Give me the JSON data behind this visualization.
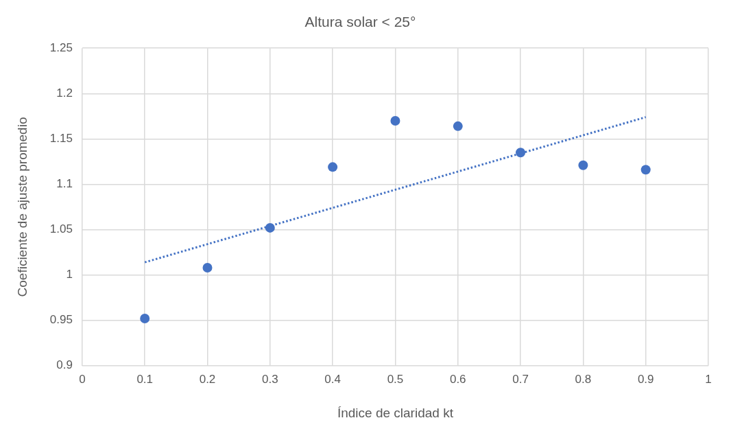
{
  "chart_data": {
    "type": "scatter",
    "title": "Altura solar < 25°",
    "xlabel": "Índice de claridad kt",
    "ylabel": "Coeficiente de ajuste promedio",
    "x": [
      0.1,
      0.2,
      0.3,
      0.4,
      0.5,
      0.6,
      0.7,
      0.8,
      0.9
    ],
    "series": [
      {
        "type": "scatter",
        "color": "#4472c4",
        "marker": "circle",
        "values": [
          0.952,
          1.008,
          1.052,
          1.119,
          1.17,
          1.164,
          1.135,
          1.121,
          1.116
        ]
      },
      {
        "type": "line",
        "color": "#4472c4",
        "marker": "none",
        "line_style": "dotted",
        "x": [
          0.1,
          0.9
        ],
        "values": [
          1.014,
          1.174
        ]
      }
    ],
    "xlim": [
      0,
      1
    ],
    "xticks": [
      0,
      0.1,
      0.2,
      0.3,
      0.4,
      0.5,
      0.6,
      0.7,
      0.8,
      0.9,
      1
    ],
    "ylim": [
      0.9,
      1.25
    ],
    "yticks": [
      0.9,
      0.95,
      1,
      1.05,
      1.1,
      1.15,
      1.2,
      1.25
    ],
    "grid": true
  }
}
